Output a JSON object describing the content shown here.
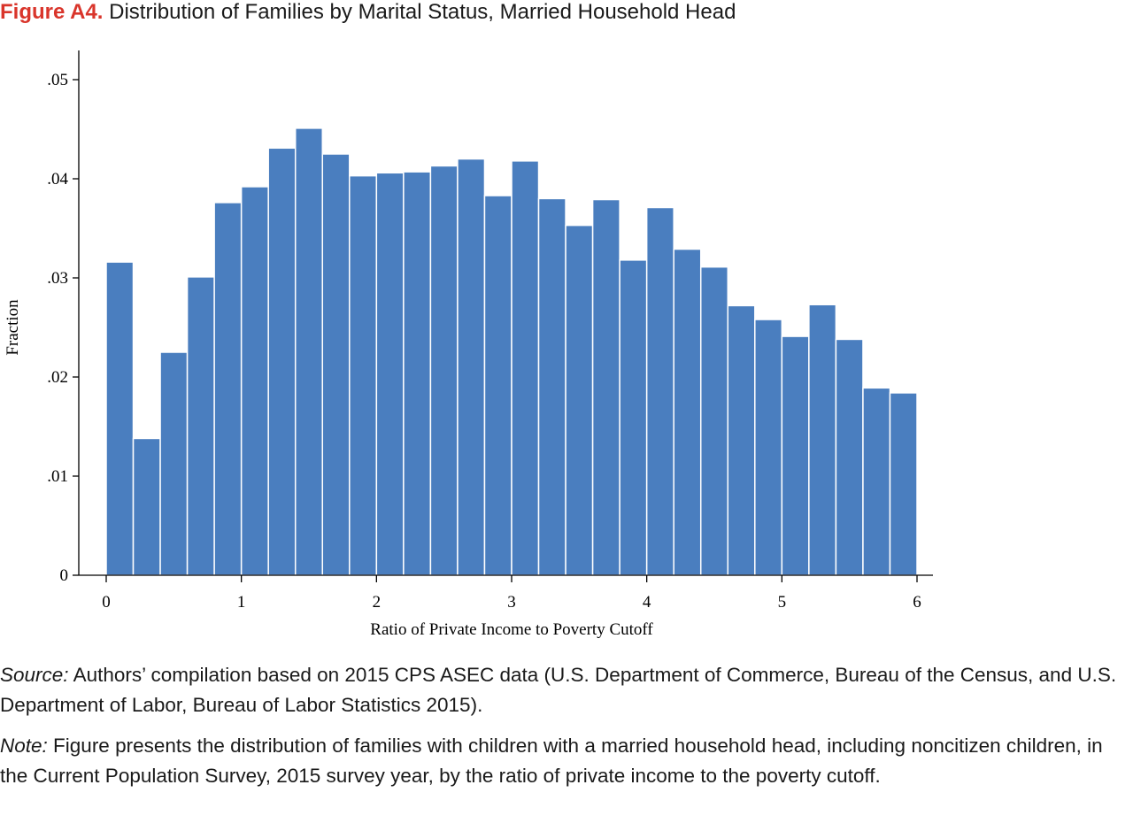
{
  "figure": {
    "number": "Figure A4.",
    "title": "Distribution of Families by Marital Status, Married Household Head"
  },
  "chart_data": {
    "type": "bar",
    "xlabel": "Ratio of Private Income to Poverty Cutoff",
    "ylabel": "Fraction",
    "xlim": [
      0,
      6
    ],
    "ylim": [
      0,
      0.05
    ],
    "x_ticks": [
      0,
      1,
      2,
      3,
      4,
      5,
      6
    ],
    "x_tick_labels": [
      "0",
      "1",
      "2",
      "3",
      "4",
      "5",
      "6"
    ],
    "y_ticks": [
      0,
      0.01,
      0.02,
      0.03,
      0.04,
      0.05
    ],
    "y_tick_labels": [
      "0",
      ".01",
      ".02",
      ".03",
      ".04",
      ".05"
    ],
    "bin_width": 0.2,
    "bin_starts": [
      0,
      0.2,
      0.4,
      0.6,
      0.8,
      1.0,
      1.2,
      1.4,
      1.6,
      1.8,
      2.0,
      2.2,
      2.4,
      2.6,
      2.8,
      3.0,
      3.2,
      3.4,
      3.6,
      3.8,
      4.0,
      4.2,
      4.4,
      4.6,
      4.8,
      5.0,
      5.2,
      5.4,
      5.6,
      5.8
    ],
    "values": [
      0.0316,
      0.0138,
      0.0225,
      0.0301,
      0.0376,
      0.0392,
      0.0431,
      0.0451,
      0.0425,
      0.0403,
      0.0406,
      0.0407,
      0.0413,
      0.042,
      0.0383,
      0.0418,
      0.038,
      0.0353,
      0.0379,
      0.0318,
      0.0371,
      0.0329,
      0.0311,
      0.0272,
      0.0258,
      0.0241,
      0.0273,
      0.0238,
      0.0189,
      0.0184
    ],
    "bar_color": "#4a7ebf",
    "grid": false
  },
  "source": {
    "label": "Source:",
    "text": "Authors’ compilation based on 2015 CPS ASEC data (U.S. Department of Commerce, Bureau of the Census, and U.S. Department of Labor, Bureau of Labor Statistics 2015)."
  },
  "note": {
    "label": "Note:",
    "text": "Figure presents the distribution of families with children with a married household head, including noncitizen children, in the Current Population Survey, 2015 survey year, by the ratio of private income to the poverty cutoff."
  }
}
